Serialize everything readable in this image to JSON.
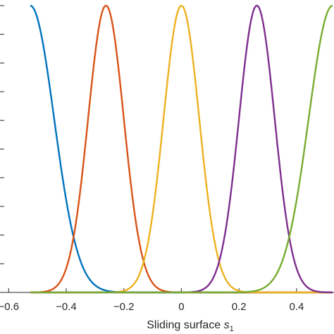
{
  "chart_data": {
    "type": "line",
    "title": "",
    "xlabel_prefix": "Sliding surface ",
    "xlabel_var": "s",
    "xlabel_sub": "1",
    "ylabel": "",
    "xlim": [
      -0.63,
      0.53
    ],
    "ylim": [
      0,
      1
    ],
    "grid": false,
    "legend": "none",
    "x_ticks": [
      -0.6,
      -0.4,
      -0.2,
      0,
      0.2,
      0.4
    ],
    "x_tick_labels": [
      "−0.6",
      "−0.4",
      "−0.2",
      "0",
      "0.2",
      "0.4"
    ],
    "y_ticks": [
      0,
      0.1,
      0.2,
      0.3,
      0.4,
      0.5,
      0.6,
      0.7,
      0.8,
      0.9,
      1.0
    ],
    "x_range": [
      -0.525,
      0.525
    ],
    "series": [
      {
        "kind": "gaussian",
        "center": -0.525,
        "sigma": 0.083,
        "color": "#0072BD"
      },
      {
        "kind": "gaussian",
        "center": -0.262,
        "sigma": 0.062,
        "color": "#D95319"
      },
      {
        "kind": "gaussian",
        "center": 0.0,
        "sigma": 0.062,
        "color": "#EDB120"
      },
      {
        "kind": "gaussian",
        "center": 0.262,
        "sigma": 0.062,
        "color": "#7E2F8E"
      },
      {
        "kind": "gaussian",
        "center": 0.525,
        "sigma": 0.083,
        "color": "#77AC30"
      }
    ]
  }
}
